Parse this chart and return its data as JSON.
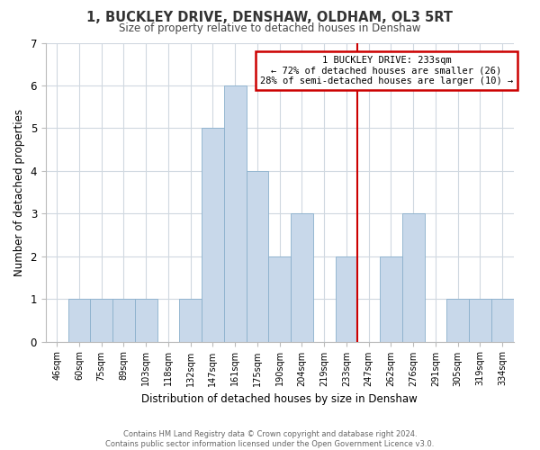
{
  "title": "1, BUCKLEY DRIVE, DENSHAW, OLDHAM, OL3 5RT",
  "subtitle": "Size of property relative to detached houses in Denshaw",
  "xlabel": "Distribution of detached houses by size in Denshaw",
  "ylabel": "Number of detached properties",
  "bin_labels": [
    "46sqm",
    "60sqm",
    "75sqm",
    "89sqm",
    "103sqm",
    "118sqm",
    "132sqm",
    "147sqm",
    "161sqm",
    "175sqm",
    "190sqm",
    "204sqm",
    "219sqm",
    "233sqm",
    "247sqm",
    "262sqm",
    "276sqm",
    "291sqm",
    "305sqm",
    "319sqm",
    "334sqm"
  ],
  "bar_heights": [
    0,
    1,
    1,
    1,
    1,
    0,
    1,
    5,
    6,
    4,
    2,
    3,
    0,
    2,
    0,
    2,
    3,
    0,
    1,
    1,
    1
  ],
  "bar_color": "#c8d8ea",
  "bar_edge_color": "#8ab0cc",
  "highlight_bin_index": 13,
  "highlight_color": "#cc0000",
  "ylim": [
    0,
    7
  ],
  "yticks": [
    0,
    1,
    2,
    3,
    4,
    5,
    6,
    7
  ],
  "annotation_title": "1 BUCKLEY DRIVE: 233sqm",
  "annotation_line1": "← 72% of detached houses are smaller (26)",
  "annotation_line2": "28% of semi-detached houses are larger (10) →",
  "annotation_box_color": "#ffffff",
  "annotation_box_edge": "#cc0000",
  "footer_line1": "Contains HM Land Registry data © Crown copyright and database right 2024.",
  "footer_line2": "Contains public sector information licensed under the Open Government Licence v3.0.",
  "bg_color": "#ffffff",
  "grid_color": "#d0d8e0"
}
